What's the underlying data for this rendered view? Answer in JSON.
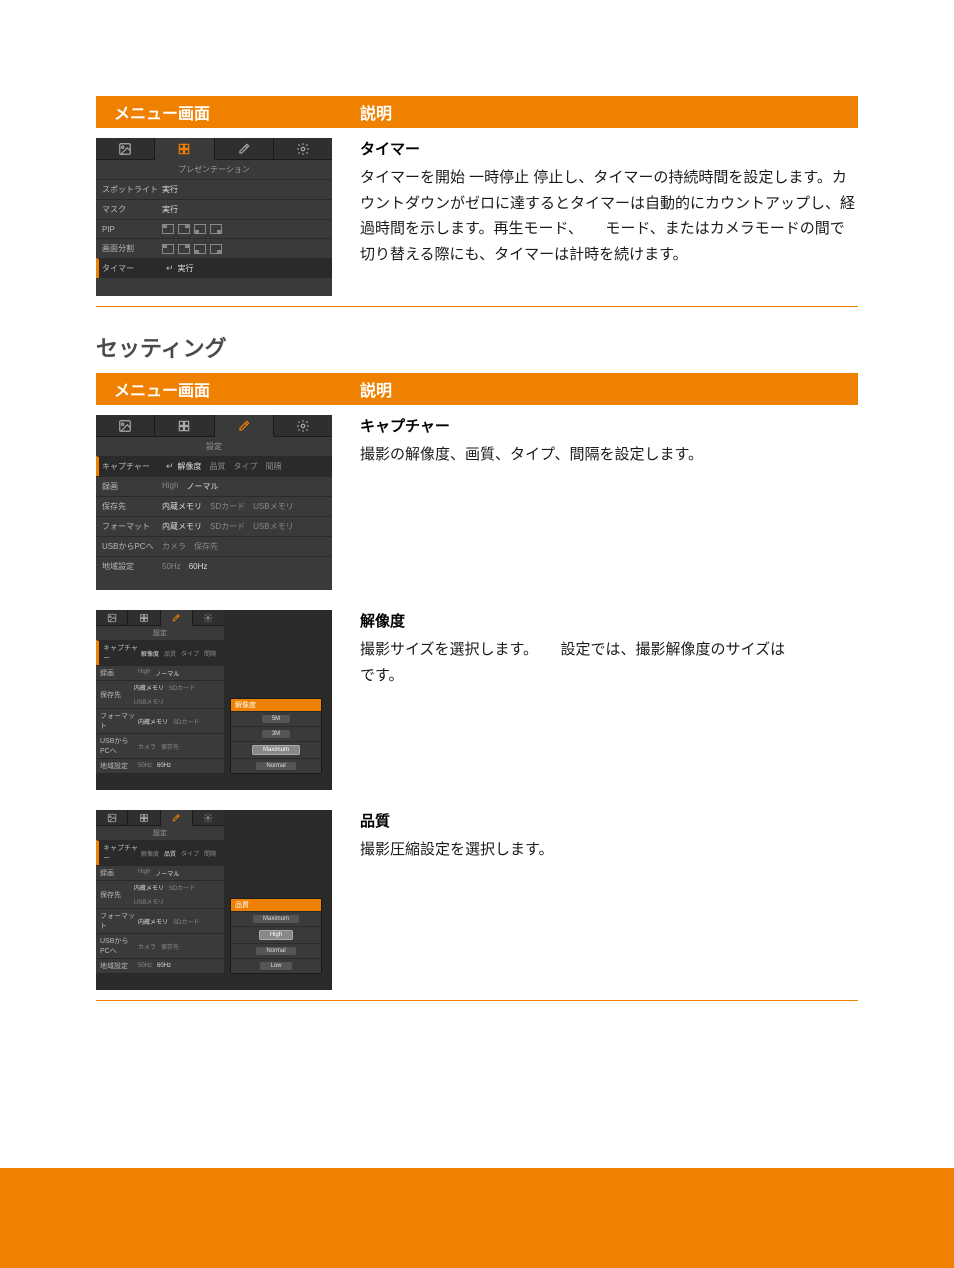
{
  "colors": {
    "accent": "#f08000",
    "thumb_bg": "#3a3a3a",
    "thumb_dark": "#2a2a2a",
    "text_muted": "#888888",
    "text_light": "#dddddd"
  },
  "header1": {
    "left": "メニュー画面",
    "right": "説明"
  },
  "section_heading": "セッティング",
  "header2": {
    "left": "メニュー画面",
    "right": "説明"
  },
  "timer_block": {
    "title": "タイマー",
    "body": "タイマーを開始 一時停止 停止し、タイマーの持続時間を設定します。カウントダウンがゼロに達するとタイマーは自動的にカウントアップし、経過時間を示します。再生モード、　　モード、またはカメラモードの間で切り替える際にも、タイマーは計時を続けます。",
    "thumb": {
      "tab_header": "プレゼンテーション",
      "rows": [
        {
          "label": "スポットライト",
          "opts": [
            "実行"
          ],
          "on": [
            0
          ]
        },
        {
          "label": "マスク",
          "opts": [
            "実行"
          ],
          "on": [
            0
          ]
        },
        {
          "label": "PIP",
          "pip": true
        },
        {
          "label": "画面分割",
          "pip": true
        },
        {
          "label": "タイマー",
          "enter": true,
          "opts": [
            "実行"
          ],
          "on": [
            0
          ],
          "selected": true
        }
      ]
    }
  },
  "capture_block": {
    "title": "キャプチャー",
    "body": "撮影の解像度、画質、タイプ、間隔を設定します。",
    "thumb": {
      "tab_header": "設定",
      "rows": [
        {
          "label": "キャプチャー",
          "enter": true,
          "opts": [
            "解像度",
            "品質",
            "タイプ",
            "間隔"
          ],
          "on": [
            0
          ],
          "selected": true
        },
        {
          "label": "録画",
          "opts": [
            "High",
            "ノーマル"
          ],
          "on": [
            1
          ]
        },
        {
          "label": "保存先",
          "opts": [
            "内蔵メモリ",
            "SDカード",
            "USBメモリ"
          ],
          "on": [
            0
          ]
        },
        {
          "label": "フォーマット",
          "opts": [
            "内蔵メモリ",
            "SDカード",
            "USBメモリ"
          ],
          "on": [
            0
          ]
        },
        {
          "label": "USBからPCへ",
          "opts": [
            "カメラ",
            "保存先"
          ],
          "on": []
        },
        {
          "label": "地域設定",
          "opts": [
            "50Hz",
            "60Hz"
          ],
          "on": [
            1
          ]
        }
      ]
    }
  },
  "resolution_block": {
    "title": "解像度",
    "body": "撮影サイズを選択します。　　設定では、撮影解像度のサイズは　　　　　　です。",
    "thumb": {
      "tab_header": "設定",
      "rows": [
        {
          "label": "キャプチャー",
          "opts": [
            "解像度",
            "品質",
            "タイプ",
            "間隔"
          ],
          "on": [
            0
          ],
          "selected": true
        },
        {
          "label": "録画",
          "opts": [
            "High",
            "ノーマル"
          ],
          "on": [
            1
          ]
        },
        {
          "label": "保存先",
          "opts": [
            "内蔵メモリ",
            "SDカード",
            "USBメモリ"
          ],
          "on": [
            0
          ]
        },
        {
          "label": "フォーマット",
          "opts": [
            "内蔵メモリ",
            "SDカード"
          ],
          "on": [
            0
          ]
        },
        {
          "label": "USBからPCへ",
          "opts": [
            "カメラ",
            "保存先"
          ],
          "on": []
        },
        {
          "label": "地域設定",
          "opts": [
            "50Hz",
            "60Hz"
          ],
          "on": [
            1
          ]
        }
      ],
      "popup": {
        "header": "解像度",
        "items": [
          "5M",
          "3M",
          "Maximum",
          "Normal"
        ],
        "lit": 2
      }
    }
  },
  "quality_block": {
    "title": "品質",
    "body": "撮影圧縮設定を選択します。",
    "thumb": {
      "tab_header": "設定",
      "rows": [
        {
          "label": "キャプチャー",
          "opts": [
            "解像度",
            "品質",
            "タイプ",
            "間隔"
          ],
          "on": [
            1
          ],
          "selected": true
        },
        {
          "label": "録画",
          "opts": [
            "High",
            "ノーマル"
          ],
          "on": [
            1
          ]
        },
        {
          "label": "保存先",
          "opts": [
            "内蔵メモリ",
            "SDカード",
            "USBメモリ"
          ],
          "on": [
            0
          ]
        },
        {
          "label": "フォーマット",
          "opts": [
            "内蔵メモリ",
            "SDカード"
          ],
          "on": [
            0
          ]
        },
        {
          "label": "USBからPCへ",
          "opts": [
            "カメラ",
            "保存先"
          ],
          "on": []
        },
        {
          "label": "地域設定",
          "opts": [
            "50Hz",
            "60Hz"
          ],
          "on": [
            1
          ]
        }
      ],
      "popup": {
        "header": "品質",
        "items": [
          "Maximum",
          "High",
          "Normal",
          "Low"
        ],
        "lit": 1
      }
    }
  }
}
